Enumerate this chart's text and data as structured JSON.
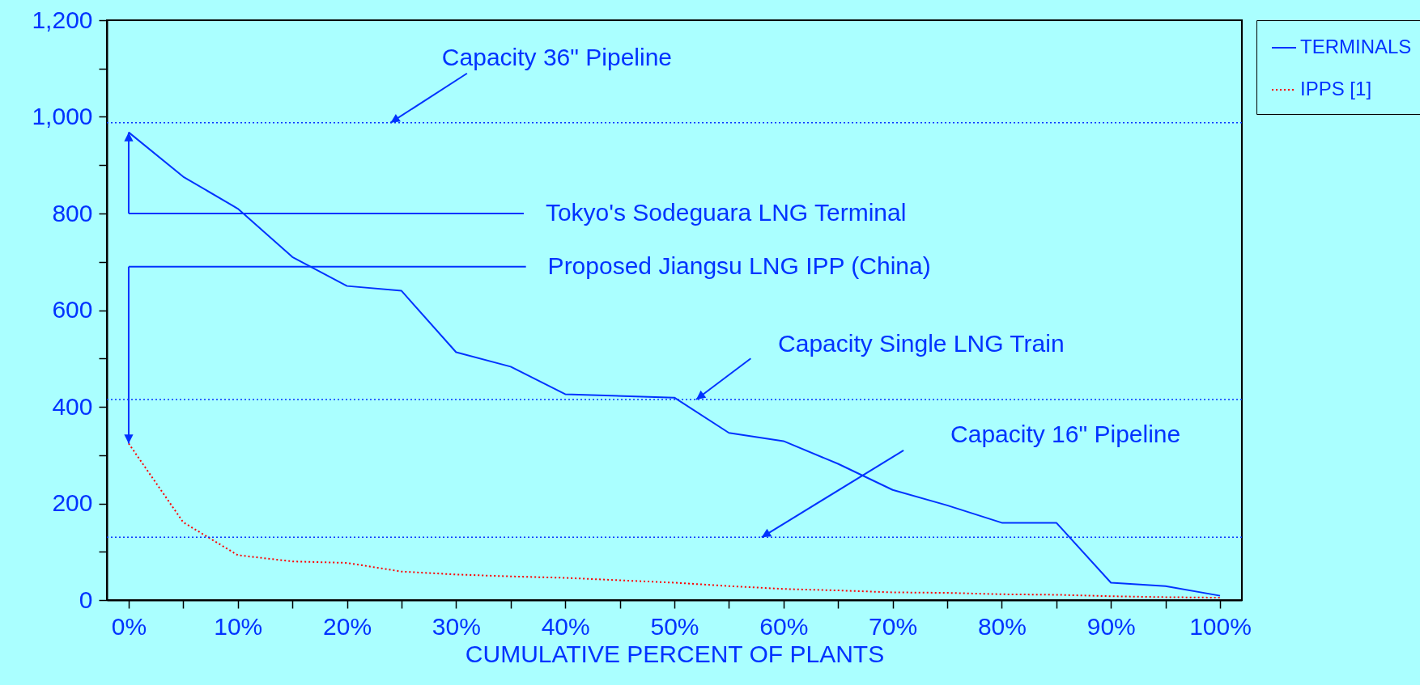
{
  "chart_data": {
    "type": "line",
    "xlabel": "CUMULATIVE PERCENT OF PLANTS",
    "x": [
      0,
      5,
      10,
      15,
      20,
      25,
      30,
      35,
      40,
      45,
      50,
      55,
      60,
      65,
      70,
      75,
      80,
      85,
      90,
      95,
      100
    ],
    "series": [
      {
        "name": "TERMINALS",
        "color": "#0033ff",
        "line_style": "solid",
        "x": [
          0,
          5,
          10,
          15,
          20,
          25,
          30,
          35,
          40,
          50,
          55,
          60,
          65,
          70,
          75,
          80,
          85,
          90,
          95,
          100
        ],
        "values": [
          968,
          876,
          810,
          710,
          650,
          640,
          513,
          483,
          426,
          419,
          346,
          329,
          282,
          228,
          196,
          160,
          160,
          36,
          29,
          9
        ]
      },
      {
        "name": "IPPS [1]",
        "color": "#ff0000",
        "line_style": "dotted",
        "values": [
          324,
          161,
          93,
          80,
          77,
          59,
          53,
          49,
          46,
          41,
          36,
          29,
          23,
          20,
          16,
          15,
          12,
          11,
          8,
          6,
          5
        ]
      }
    ],
    "xlim": [
      -2,
      102
    ],
    "xticks": [
      {
        "value": 0,
        "label": "0%"
      },
      {
        "value": 5,
        "label": null
      },
      {
        "value": 10,
        "label": "10%"
      },
      {
        "value": 15,
        "label": null
      },
      {
        "value": 20,
        "label": "20%"
      },
      {
        "value": 25,
        "label": null
      },
      {
        "value": 30,
        "label": "30%"
      },
      {
        "value": 35,
        "label": null
      },
      {
        "value": 40,
        "label": "40%"
      },
      {
        "value": 45,
        "label": null
      },
      {
        "value": 50,
        "label": "50%"
      },
      {
        "value": 55,
        "label": null
      },
      {
        "value": 60,
        "label": "60%"
      },
      {
        "value": 65,
        "label": null
      },
      {
        "value": 70,
        "label": "70%"
      },
      {
        "value": 75,
        "label": null
      },
      {
        "value": 80,
        "label": "80%"
      },
      {
        "value": 85,
        "label": null
      },
      {
        "value": 90,
        "label": "90%"
      },
      {
        "value": 95,
        "label": null
      },
      {
        "value": 100,
        "label": "100%"
      }
    ],
    "ylim": [
      0,
      1200
    ],
    "yticks": [
      0,
      {
        "value": 100,
        "label": null
      },
      200,
      {
        "value": 300,
        "label": null
      },
      400,
      {
        "value": 500,
        "label": null
      },
      600,
      {
        "value": 700,
        "label": null
      },
      800,
      {
        "value": 900,
        "label": null
      },
      {
        "value": 1000,
        "label": "1,000"
      },
      {
        "value": 1100,
        "label": null
      },
      {
        "value": 1200,
        "label": "1,200"
      }
    ],
    "ref_lines": [
      {
        "axis": "y",
        "value": 988,
        "label": "Capacity 36\" Pipeline",
        "color": "#0033ff",
        "line_style": "dotted"
      },
      {
        "axis": "y",
        "value": 415,
        "label": "Capacity Single LNG Train",
        "color": "#0033ff",
        "line_style": "dotted"
      },
      {
        "axis": "y",
        "value": 130,
        "label": "Capacity 16\" Pipeline",
        "color": "#0033ff",
        "line_style": "dotted"
      }
    ],
    "annotations": [
      "Tokyo's Sodeguara LNG Terminal",
      "Proposed Jiangsu LNG IPP (China)"
    ],
    "grid": false,
    "legend": "right"
  }
}
